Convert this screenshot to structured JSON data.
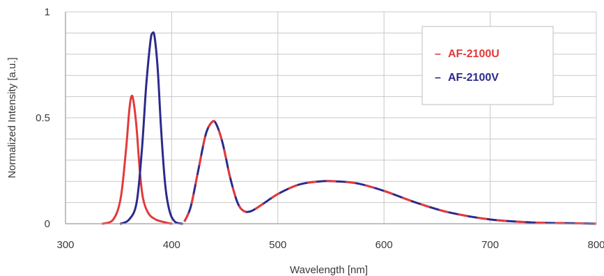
{
  "chart_data": {
    "type": "line",
    "title": "",
    "xlabel": "Wavelength [nm]",
    "ylabel": "Normalized Intensity [a.u.]",
    "xlim": [
      300,
      800
    ],
    "ylim": [
      0,
      1
    ],
    "xticks": [
      300,
      400,
      500,
      600,
      700,
      800
    ],
    "xtick_labels": [
      "300",
      "400",
      "500",
      "600",
      "700",
      "800"
    ],
    "yticks": [
      0,
      0.5,
      1
    ],
    "ytick_labels": [
      "0",
      "0.5",
      "1"
    ],
    "grid": true,
    "legend_position": "top-right",
    "series": [
      {
        "name": "AF-2100U",
        "color": "#e23a3a",
        "style": "solid-then-dashed",
        "points": [
          [
            335,
            0
          ],
          [
            345,
            0.02
          ],
          [
            352,
            0.12
          ],
          [
            357,
            0.35
          ],
          [
            360,
            0.53
          ],
          [
            362,
            0.6
          ],
          [
            364,
            0.58
          ],
          [
            367,
            0.45
          ],
          [
            370,
            0.25
          ],
          [
            373,
            0.12
          ],
          [
            378,
            0.05
          ],
          [
            385,
            0.02
          ],
          [
            395,
            0.005
          ],
          [
            400,
            0
          ]
        ],
        "tail": [
          [
            412,
            0.01
          ],
          [
            418,
            0.08
          ],
          [
            425,
            0.25
          ],
          [
            432,
            0.42
          ],
          [
            438,
            0.48
          ],
          [
            442,
            0.47
          ],
          [
            448,
            0.38
          ],
          [
            455,
            0.22
          ],
          [
            462,
            0.1
          ],
          [
            468,
            0.06
          ],
          [
            475,
            0.06
          ],
          [
            485,
            0.09
          ],
          [
            500,
            0.14
          ],
          [
            520,
            0.185
          ],
          [
            540,
            0.2
          ],
          [
            555,
            0.2
          ],
          [
            575,
            0.19
          ],
          [
            600,
            0.155
          ],
          [
            630,
            0.1
          ],
          [
            660,
            0.055
          ],
          [
            700,
            0.02
          ],
          [
            740,
            0.006
          ],
          [
            780,
            0.002
          ],
          [
            800,
            0.0
          ]
        ]
      },
      {
        "name": "AF-2100V",
        "color": "#2b2a8c",
        "style": "solid-then-dashed",
        "points": [
          [
            352,
            0
          ],
          [
            360,
            0.02
          ],
          [
            367,
            0.1
          ],
          [
            372,
            0.35
          ],
          [
            376,
            0.65
          ],
          [
            380,
            0.86
          ],
          [
            382,
            0.9
          ],
          [
            384,
            0.88
          ],
          [
            387,
            0.72
          ],
          [
            390,
            0.45
          ],
          [
            394,
            0.18
          ],
          [
            398,
            0.06
          ],
          [
            403,
            0.01
          ],
          [
            410,
            0
          ]
        ],
        "tail": [
          [
            412,
            0.01
          ],
          [
            418,
            0.08
          ],
          [
            425,
            0.25
          ],
          [
            432,
            0.42
          ],
          [
            438,
            0.48
          ],
          [
            442,
            0.47
          ],
          [
            448,
            0.38
          ],
          [
            455,
            0.22
          ],
          [
            462,
            0.1
          ],
          [
            468,
            0.06
          ],
          [
            475,
            0.06
          ],
          [
            485,
            0.09
          ],
          [
            500,
            0.14
          ],
          [
            520,
            0.185
          ],
          [
            540,
            0.2
          ],
          [
            555,
            0.2
          ],
          [
            575,
            0.19
          ],
          [
            600,
            0.155
          ],
          [
            630,
            0.1
          ],
          [
            660,
            0.055
          ],
          [
            700,
            0.02
          ],
          [
            740,
            0.006
          ],
          [
            780,
            0.002
          ],
          [
            800,
            0.0
          ]
        ]
      }
    ],
    "legend": [
      {
        "marker": "–",
        "label": "AF-2100U",
        "color": "#e23a3a"
      },
      {
        "marker": "–",
        "label": "AF-2100V",
        "color": "#2b2a8c"
      }
    ]
  }
}
